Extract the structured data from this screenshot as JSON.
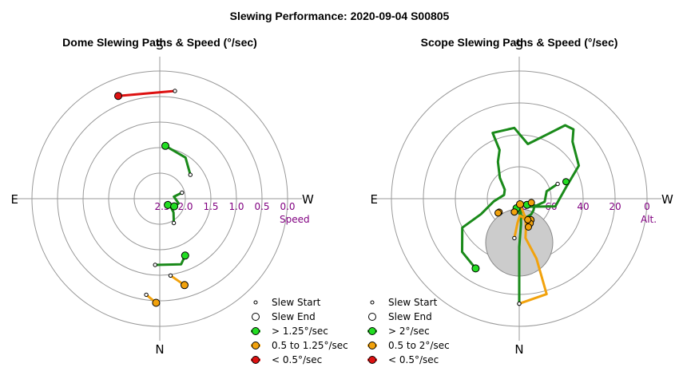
{
  "figure_title": "Slewing Performance: 2020-09-04 S00805",
  "colors": {
    "fast": "#1a8a1a",
    "fast_marker": "#22dd22",
    "medium": "#f2a20c",
    "medium_marker": "#f2a20c",
    "slow": "#dd1111",
    "slow_marker": "#dd1111",
    "grid": "#999999",
    "tick_text": "#800080"
  },
  "chart_data": [
    {
      "type": "polar-path",
      "title": "Dome Slewing Paths & Speed (°/sec)",
      "compass": {
        "top": "S",
        "bottom": "N",
        "left": "E",
        "right": "W"
      },
      "radial_axis": {
        "label": "Speed",
        "ticks": [
          "2.5",
          "2.0",
          "1.5",
          "1.0",
          "0.5",
          "0.0"
        ],
        "min": 0.0,
        "max": 2.5,
        "inverted": true
      },
      "legend": [
        {
          "marker": "start",
          "label": "Slew Start"
        },
        {
          "marker": "end",
          "label": "Slew End"
        },
        {
          "marker": "fast",
          "label": "> 1.25°/sec"
        },
        {
          "marker": "medium",
          "label": "0.5 to 1.25°/sec"
        },
        {
          "marker": "slow",
          "label": "< 0.5°/sec"
        }
      ],
      "paths": [
        {
          "speed_class": "medium",
          "points": [
            [
              188,
              0.6
            ],
            [
              182,
              0.46
            ]
          ]
        },
        {
          "speed_class": "medium",
          "points": [
            [
              172,
              0.98
            ],
            [
              164,
              0.74
            ]
          ]
        },
        {
          "speed_class": "fast",
          "points": [
            [
              184,
              1.2
            ],
            [
              162,
              1.15
            ],
            [
              156,
              1.28
            ]
          ]
        },
        {
          "speed_class": "fast",
          "points": [
            [
              150,
              1.95
            ],
            [
              135,
              2.12
            ],
            [
              112,
              2.32
            ],
            [
              128,
              2.3
            ]
          ]
        },
        {
          "speed_class": "fast",
          "points": [
            [
              75,
              2.05
            ],
            [
              82,
              2.22
            ],
            [
              104,
              2.12
            ],
            [
              118,
              2.18
            ]
          ]
        },
        {
          "speed_class": "fast",
          "points": [
            [
              52,
              1.74
            ],
            [
              32,
              1.55
            ],
            [
              6,
              1.46
            ]
          ]
        },
        {
          "speed_class": "slow",
          "points": [
            [
              8,
              0.37
            ],
            [
              338,
              0.33
            ]
          ]
        }
      ]
    },
    {
      "type": "polar-path",
      "title": "Scope Slewing Paths & Speed (°/sec)",
      "compass": {
        "top": "S",
        "bottom": "N",
        "left": "E",
        "right": "W"
      },
      "radial_axis": {
        "label": "Alt.",
        "ticks": [
          "80",
          "60",
          "40",
          "20",
          "0"
        ],
        "min": 0,
        "max": 90,
        "inverted": true
      },
      "zenith_exclusion": {
        "min_altitude": 83
      },
      "legend": [
        {
          "marker": "start",
          "label": "Slew Start"
        },
        {
          "marker": "end",
          "label": "Slew End"
        },
        {
          "marker": "fast",
          "label": "> 2°/sec"
        },
        {
          "marker": "medium",
          "label": "0.5 to 2°/sec"
        },
        {
          "marker": "slow",
          "label": "< 0.5°/sec"
        }
      ],
      "paths": [
        {
          "speed_class": "fast",
          "points": [
            [
              180,
              16
            ],
            [
              180,
              56
            ],
            [
              176,
              72
            ],
            [
              164,
              86
            ],
            [
              135,
              82
            ],
            [
              102,
              64
            ],
            [
              78,
              57
            ],
            [
              61,
              42
            ],
            [
              43,
              35
            ],
            [
              38,
              28
            ],
            [
              32,
              29
            ],
            [
              24,
              40
            ],
            [
              9,
              51
            ],
            [
              356,
              40
            ],
            [
              338,
              40
            ],
            [
              338,
              53
            ],
            [
              330,
              60
            ],
            [
              317,
              70
            ],
            [
              302,
              78
            ],
            [
              284,
              79
            ],
            [
              264,
              72
            ],
            [
              248,
              61
            ],
            [
              243,
              45
            ],
            [
              227,
              35
            ],
            [
              212,
              32
            ]
          ]
        },
        {
          "speed_class": "fast",
          "points": [
            [
              108,
              81
            ],
            [
              118,
              78
            ],
            [
              130,
              77
            ],
            [
              144,
              76
            ],
            [
              158,
              76
            ],
            [
              176,
              78
            ],
            [
              196,
              83
            ]
          ]
        },
        {
          "speed_class": "fast",
          "points": [
            [
              69,
              61
            ],
            [
              75,
              70
            ],
            [
              97,
              72
            ],
            [
              112,
              77
            ],
            [
              128,
              83
            ]
          ]
        },
        {
          "speed_class": "medium",
          "points": [
            [
              180,
              16
            ],
            [
              164,
              20
            ],
            [
              164,
              46
            ],
            [
              171,
              62
            ],
            [
              167,
              69
            ],
            [
              162,
              76
            ],
            [
              172,
              86
            ]
          ]
        },
        {
          "speed_class": "medium",
          "points": [
            [
              187,
              62
            ],
            [
              184,
              73
            ],
            [
              178,
              78
            ],
            [
              170,
              77
            ],
            [
              164,
              74
            ],
            [
              158,
              71
            ],
            [
              152,
              73
            ]
          ]
        }
      ],
      "extra_markers": [
        {
          "marker": "medium",
          "point": [
            156,
            71
          ]
        },
        {
          "marker": "medium",
          "point": [
            162,
            69
          ]
        },
        {
          "marker": "medium",
          "point": [
            158,
            74
          ]
        },
        {
          "marker": "medium",
          "point": [
            108,
            81
          ]
        },
        {
          "marker": "medium",
          "point": [
            200,
            80
          ]
        },
        {
          "marker": "medium",
          "point": [
            236,
            73
          ]
        },
        {
          "marker": "medium",
          "point": [
            236,
            72
          ]
        },
        {
          "marker": "fast",
          "point": [
            70,
            55
          ]
        }
      ]
    }
  ]
}
